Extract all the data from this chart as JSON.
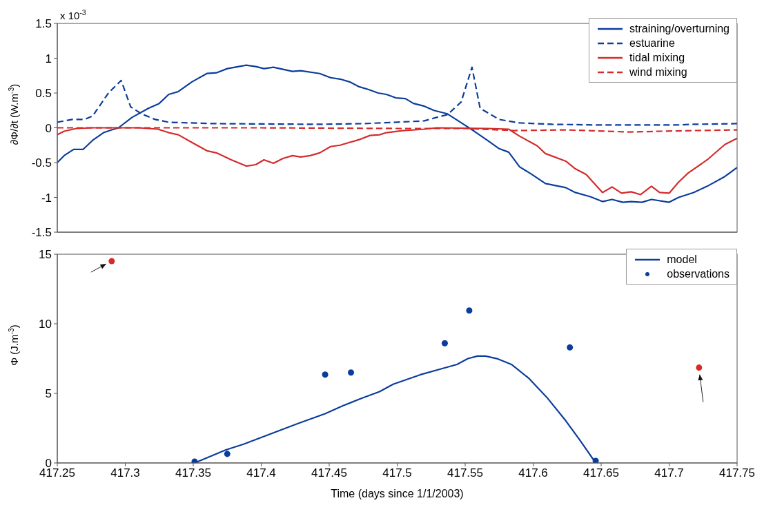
{
  "chart_data": [
    {
      "type": "line",
      "ylabel": "∂Φ/∂t (W.m$^{-3}$)",
      "annotations": [
        "x 10$^{-3}$"
      ],
      "xlim": [
        417.25,
        417.75
      ],
      "xticks": [
        417.25,
        417.3,
        417.35,
        417.4,
        417.45,
        417.5,
        417.55,
        417.6,
        417.65,
        417.7,
        417.75
      ],
      "ylim": [
        -1.5,
        1.5
      ],
      "yticks": [
        -1.5,
        -1,
        -0.5,
        0,
        0.5,
        1,
        1.5
      ],
      "tick_labels": "y",
      "legend": "top right",
      "grid": false,
      "series": [
        {
          "name": "straining/overturning",
          "color": "#0b3d9c",
          "line_style": "solid",
          "x": [
            417.25,
            417.255,
            417.262,
            417.269,
            417.276,
            417.284,
            417.29,
            417.295,
            417.305,
            417.317,
            417.325,
            417.332,
            417.339,
            417.349,
            417.36,
            417.367,
            417.375,
            417.389,
            417.396,
            417.402,
            417.409,
            417.423,
            417.429,
            417.443,
            417.451,
            417.458,
            417.465,
            417.472,
            417.479,
            417.486,
            417.492,
            417.499,
            417.506,
            417.512,
            417.52,
            417.527,
            417.537,
            417.548,
            417.556,
            417.567,
            417.575,
            417.582,
            417.59,
            417.599,
            417.609,
            417.624,
            417.631,
            417.642,
            417.651,
            417.658,
            417.666,
            417.672,
            417.68,
            417.687,
            417.7,
            417.707,
            417.718,
            417.728,
            417.741,
            417.75
          ],
          "values": [
            -0.5,
            -0.4,
            -0.31,
            -0.31,
            -0.18,
            -0.07,
            -0.03,
            0,
            0.15,
            0.28,
            0.35,
            0.48,
            0.52,
            0.66,
            0.78,
            0.79,
            0.85,
            0.9,
            0.88,
            0.85,
            0.87,
            0.81,
            0.82,
            0.78,
            0.72,
            0.7,
            0.66,
            0.59,
            0.55,
            0.5,
            0.48,
            0.43,
            0.42,
            0.35,
            0.31,
            0.25,
            0.2,
            0.06,
            -0.04,
            -0.19,
            -0.3,
            -0.35,
            -0.56,
            -0.67,
            -0.8,
            -0.86,
            -0.93,
            -0.99,
            -1.06,
            -1.03,
            -1.07,
            -1.06,
            -1.07,
            -1.03,
            -1.07,
            -1,
            -0.93,
            -0.84,
            -0.7,
            -0.57
          ]
        },
        {
          "name": "estuarine",
          "color": "#0b3d9c",
          "line_style": "dashed",
          "x": [
            417.25,
            417.261,
            417.27,
            417.276,
            417.288,
            417.297,
            417.304,
            417.312,
            417.322,
            417.332,
            417.348,
            417.365,
            417.441,
            417.475,
            417.5,
            417.52,
            417.529,
            417.537,
            417.547,
            417.555,
            417.561,
            417.575,
            417.59,
            417.614,
            417.65,
            417.705,
            417.718,
            417.75
          ],
          "values": [
            0.08,
            0.12,
            0.12,
            0.17,
            0.51,
            0.68,
            0.3,
            0.2,
            0.12,
            0.08,
            0.07,
            0.06,
            0.05,
            0.06,
            0.08,
            0.1,
            0.15,
            0.19,
            0.37,
            0.87,
            0.28,
            0.12,
            0.07,
            0.05,
            0.04,
            0.04,
            0.05,
            0.06
          ]
        },
        {
          "name": "tidal mixing",
          "color": "#d42b2b",
          "line_style": "solid",
          "x": [
            417.25,
            417.255,
            417.264,
            417.276,
            417.31,
            417.324,
            417.332,
            417.339,
            417.349,
            417.36,
            417.367,
            417.378,
            417.389,
            417.396,
            417.402,
            417.409,
            417.416,
            417.423,
            417.429,
            417.436,
            417.443,
            417.451,
            417.458,
            417.472,
            417.48,
            417.487,
            417.492,
            417.504,
            417.52,
            417.529,
            417.567,
            417.582,
            417.59,
            417.603,
            417.609,
            417.624,
            417.631,
            417.639,
            417.644,
            417.651,
            417.658,
            417.665,
            417.672,
            417.679,
            417.687,
            417.693,
            417.7,
            417.707,
            417.714,
            417.728,
            417.741,
            417.75
          ],
          "values": [
            -0.1,
            -0.05,
            -0.01,
            0,
            0,
            -0.02,
            -0.07,
            -0.1,
            -0.21,
            -0.33,
            -0.36,
            -0.46,
            -0.55,
            -0.53,
            -0.46,
            -0.51,
            -0.44,
            -0.4,
            -0.42,
            -0.4,
            -0.36,
            -0.27,
            -0.25,
            -0.17,
            -0.11,
            -0.1,
            -0.07,
            -0.04,
            -0.02,
            0,
            -0.01,
            -0.02,
            -0.12,
            -0.26,
            -0.37,
            -0.48,
            -0.59,
            -0.67,
            -0.78,
            -0.93,
            -0.85,
            -0.94,
            -0.92,
            -0.96,
            -0.84,
            -0.93,
            -0.94,
            -0.78,
            -0.65,
            -0.46,
            -0.24,
            -0.15
          ]
        },
        {
          "name": "wind mixing",
          "color": "#d42b2b",
          "line_style": "dashed",
          "x": [
            417.25,
            417.4,
            417.5,
            417.55,
            417.586,
            417.624,
            417.671,
            417.718,
            417.75
          ],
          "values": [
            0,
            0,
            -0.01,
            -0.01,
            -0.04,
            -0.03,
            -0.06,
            -0.04,
            -0.03
          ]
        }
      ]
    },
    {
      "type": "line",
      "xlabel": "Time (days since 1/1/2003)",
      "ylabel": "Φ (J.m$^{-3}$)",
      "xlim": [
        417.25,
        417.75
      ],
      "xticks": [
        417.25,
        417.3,
        417.35,
        417.4,
        417.45,
        417.5,
        417.55,
        417.6,
        417.65,
        417.7,
        417.75
      ],
      "ylim": [
        0,
        15
      ],
      "yticks": [
        0,
        5,
        10,
        15
      ],
      "legend": "top right",
      "grid": false,
      "series": [
        {
          "name": "model",
          "type": "line",
          "color": "#0b3d9c",
          "line_style": "solid",
          "x": [
            417.351,
            417.374,
            417.387,
            417.407,
            417.427,
            417.447,
            417.46,
            417.474,
            417.487,
            417.497,
            417.517,
            417.534,
            417.544,
            417.552,
            417.559,
            417.565,
            417.574,
            417.584,
            417.597,
            417.61,
            417.624,
            417.634,
            417.646
          ],
          "values": [
            0,
            0.94,
            1.35,
            2.09,
            2.83,
            3.54,
            4.11,
            4.65,
            5.12,
            5.66,
            6.34,
            6.81,
            7.08,
            7.5,
            7.68,
            7.68,
            7.48,
            7.08,
            6.07,
            4.72,
            3.03,
            1.69,
            0
          ]
        },
        {
          "name": "observations",
          "type": "scatter",
          "marker": "circle",
          "color": "#0b3d9c",
          "x": [
            417.351,
            417.375,
            417.447,
            417.466,
            417.535,
            417.553,
            417.627,
            417.646
          ],
          "values": [
            0.1,
            0.65,
            6.35,
            6.5,
            8.6,
            10.95,
            8.3,
            0.15
          ]
        },
        {
          "type": "scatter",
          "marker": "circle",
          "color": "#d42b2b",
          "x": [
            417.29,
            417.722
          ],
          "values": [
            14.5,
            6.85
          ]
        }
      ]
    }
  ]
}
